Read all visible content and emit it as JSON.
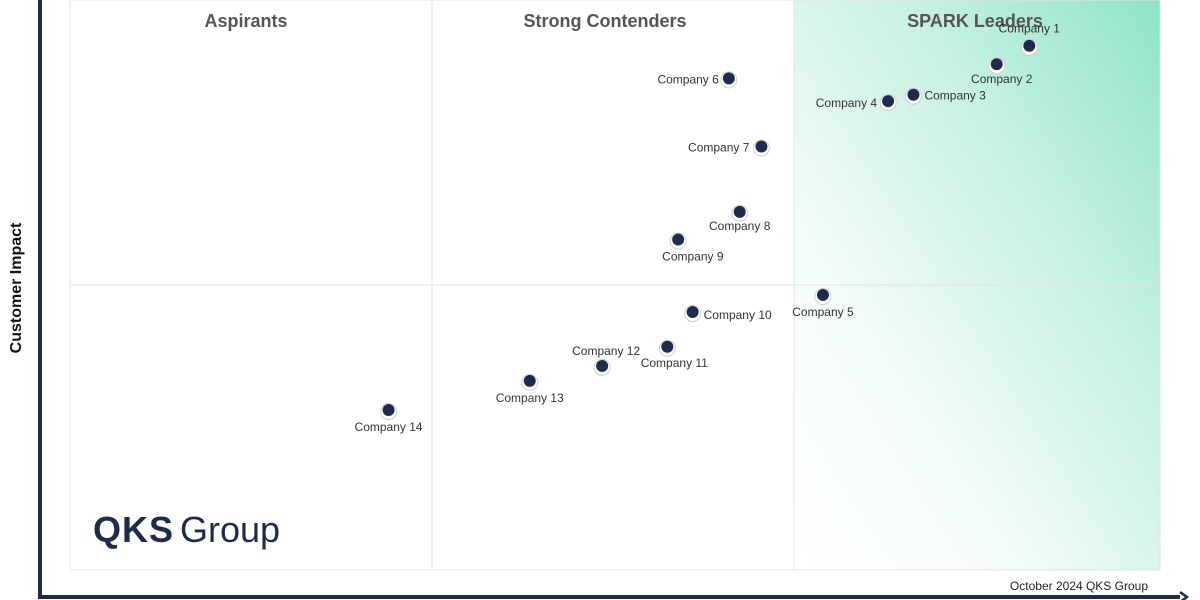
{
  "chart_data": {
    "type": "scatter",
    "ylabel": "Customer Impact",
    "quadrants": [
      "Aspirants",
      "Strong Contenders",
      "SPARK Leaders"
    ],
    "points": [
      {
        "label": "Company 1",
        "x": 2.65,
        "y": 3.37
      },
      {
        "label": "Company 2",
        "x": 2.56,
        "y": 3.11
      },
      {
        "label": "Company 3",
        "x": 2.33,
        "y": 2.68
      },
      {
        "label": "Company 4",
        "x": 2.26,
        "y": 2.59
      },
      {
        "label": "Company 5",
        "x": 2.08,
        "y": -0.14
      },
      {
        "label": "Company 6",
        "x": 1.82,
        "y": 2.91
      },
      {
        "label": "Company 7",
        "x": 1.91,
        "y": 1.95
      },
      {
        "label": "Company 8",
        "x": 1.85,
        "y": 1.03
      },
      {
        "label": "Company 9",
        "x": 1.68,
        "y": 0.64
      },
      {
        "label": "Company 10",
        "x": 1.72,
        "y": -0.38
      },
      {
        "label": "Company 11",
        "x": 1.65,
        "y": -0.87
      },
      {
        "label": "Company 12",
        "x": 1.47,
        "y": -1.14
      },
      {
        "label": "Company 13",
        "x": 1.27,
        "y": -1.35
      },
      {
        "label": "Company 14",
        "x": 0.88,
        "y": -1.76
      }
    ]
  },
  "logo": {
    "bold": "QKS",
    "light": "Group"
  },
  "footer": "October 2024 QKS Group"
}
